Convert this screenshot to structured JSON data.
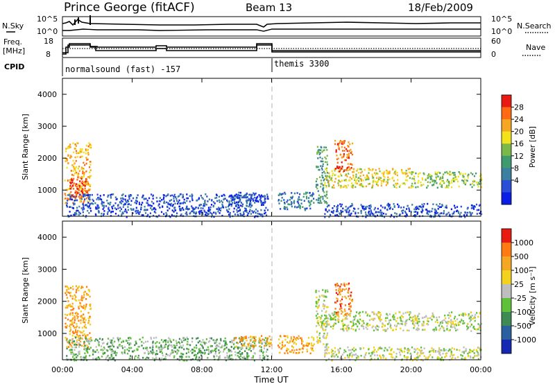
{
  "header": {
    "station": "Prince George (fitACF)",
    "beam": "Beam 13",
    "date": "18/Feb/2009"
  },
  "status": {
    "nsky_label": "N.Sky",
    "nsky_ticks": [
      "10^5",
      "10^0"
    ],
    "nsearch_label": "N.Search",
    "nsearch_ticks": [
      "10^5",
      "10^0"
    ],
    "freq_label_1": "Freq.",
    "freq_label_2": "[MHz]",
    "freq_ticks": [
      "18",
      "8"
    ],
    "nave_label": "Nave",
    "nave_ticks": [
      "60",
      "0"
    ],
    "cpid_label": "CPID",
    "cpid_segments": [
      "normalsound (fast) -157",
      "themis 3300"
    ]
  },
  "chart_data": [
    {
      "type": "heatmap",
      "title": "",
      "xlabel": "",
      "ylabel": "Slant Range [km]",
      "x_range": [
        "00:00",
        "24:00"
      ],
      "xtick_labels": [
        "00:00",
        "04:00",
        "08:00",
        "12:00",
        "16:00",
        "20:00",
        "00:00"
      ],
      "ylim": [
        180,
        4500
      ],
      "ytick_labels": [
        "1000",
        "2000",
        "3000",
        "4000"
      ],
      "ytick_values": [
        1000,
        2000,
        3000,
        4000
      ],
      "colorbar": {
        "label": "Power [dB]",
        "ticks": [
          "4",
          "8",
          "12",
          "16",
          "20",
          "24",
          "28"
        ],
        "colors": [
          "#0a1ee6",
          "#2a4fd6",
          "#3d7fa0",
          "#3f9a70",
          "#7ab84a",
          "#f2e21c",
          "#f5a623",
          "#ff6a12",
          "#e81a12"
        ]
      },
      "echo_regions": [
        {
          "t_start": 0.1,
          "t_end": 1.6,
          "r_start": 600,
          "r_end": 2500,
          "level": 6
        },
        {
          "t_start": 0.4,
          "t_end": 1.4,
          "r_start": 800,
          "r_end": 1400,
          "level": 8
        },
        {
          "t_start": 0.2,
          "t_end": 11.8,
          "r_start": 180,
          "r_end": 900,
          "level": 1
        },
        {
          "t_start": 9.8,
          "t_end": 11.6,
          "r_start": 600,
          "r_end": 950,
          "level": 1
        },
        {
          "t_start": 12.3,
          "t_end": 14.4,
          "r_start": 400,
          "r_end": 950,
          "level": 2
        },
        {
          "t_start": 14.5,
          "t_end": 15.2,
          "r_start": 600,
          "r_end": 2400,
          "level": 3
        },
        {
          "t_start": 15.0,
          "t_end": 20.0,
          "r_start": 1100,
          "r_end": 1700,
          "level": 5
        },
        {
          "t_start": 20.0,
          "t_end": 24.0,
          "r_start": 1100,
          "r_end": 1600,
          "level": 4
        },
        {
          "t_start": 15.6,
          "t_end": 16.6,
          "r_start": 1600,
          "r_end": 2600,
          "level": 7
        },
        {
          "t_start": 15.0,
          "t_end": 24.0,
          "r_start": 180,
          "r_end": 600,
          "level": 1
        }
      ]
    },
    {
      "type": "heatmap",
      "title": "",
      "xlabel": "Time UT",
      "ylabel": "Slant Range [km]",
      "x_range": [
        "00:00",
        "24:00"
      ],
      "xtick_labels": [
        "00:00",
        "04:00",
        "08:00",
        "12:00",
        "16:00",
        "20:00",
        "00:00"
      ],
      "ylim": [
        180,
        4500
      ],
      "ytick_labels": [
        "1000",
        "2000",
        "3000",
        "4000"
      ],
      "ytick_values": [
        1000,
        2000,
        3000,
        4000
      ],
      "colorbar": {
        "label": "Velocity [m s⁻¹]",
        "ticks": [
          "1000",
          "500",
          "100",
          "25",
          "-25",
          "-100",
          "-500",
          "-1000"
        ],
        "colors": [
          "#1428b4",
          "#2a5fa0",
          "#3e8a55",
          "#5fc03a",
          "#bebebe",
          "#f2d21c",
          "#f5a623",
          "#ff7a12",
          "#e81a12"
        ]
      },
      "echo_regions": [
        {
          "t_start": 0.1,
          "t_end": 1.6,
          "r_start": 600,
          "r_end": 2500,
          "level": 6
        },
        {
          "t_start": 0.2,
          "t_end": 11.8,
          "r_start": 180,
          "r_end": 900,
          "level": 3
        },
        {
          "t_start": 9.8,
          "t_end": 12.0,
          "r_start": 600,
          "r_end": 950,
          "level": 6
        },
        {
          "t_start": 12.3,
          "t_end": 14.4,
          "r_start": 400,
          "r_end": 950,
          "level": 6
        },
        {
          "t_start": 14.5,
          "t_end": 15.2,
          "r_start": 600,
          "r_end": 2400,
          "level": 4
        },
        {
          "t_start": 15.0,
          "t_end": 24.0,
          "r_start": 1100,
          "r_end": 1700,
          "level": 4
        },
        {
          "t_start": 15.6,
          "t_end": 16.6,
          "r_start": 1600,
          "r_end": 2600,
          "level": 7
        },
        {
          "t_start": 15.0,
          "t_end": 24.0,
          "r_start": 180,
          "r_end": 600,
          "level": 4
        }
      ]
    }
  ]
}
